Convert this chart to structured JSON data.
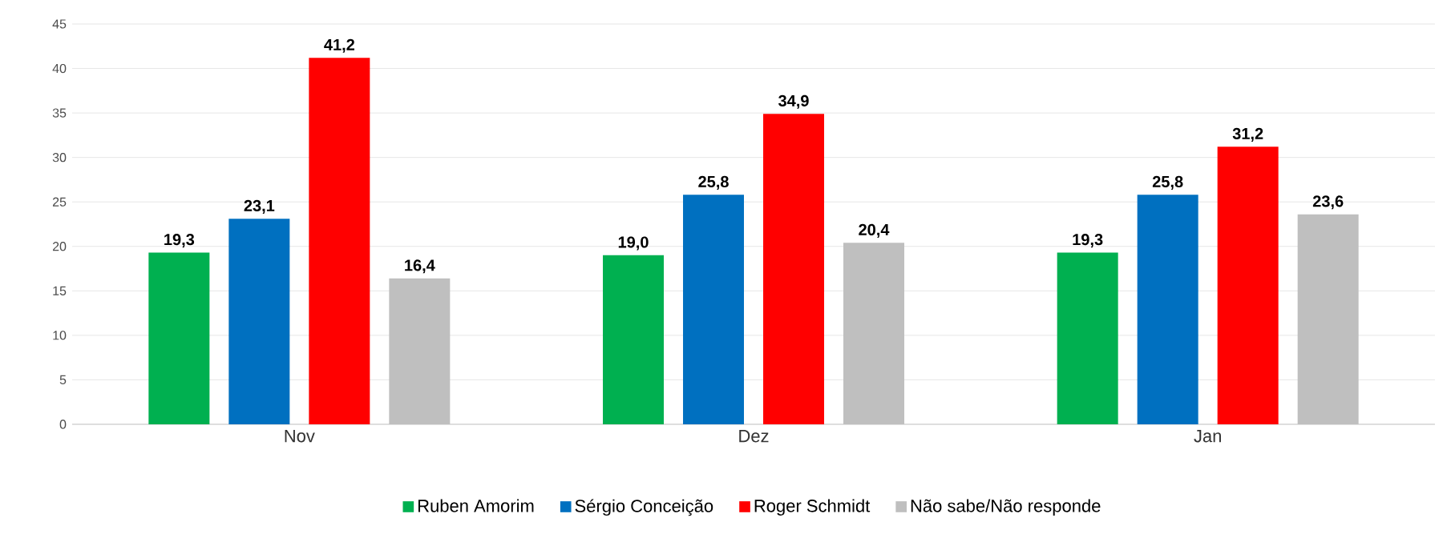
{
  "chart_data": {
    "type": "bar",
    "categories": [
      "Nov",
      "Dez",
      "Jan"
    ],
    "series": [
      {
        "name": "Ruben Amorim",
        "color": "#00b050",
        "values": [
          19.3,
          19.0,
          19.3
        ],
        "value_labels": [
          "19,3",
          "19,0",
          "19,3"
        ]
      },
      {
        "name": "Sérgio Conceição",
        "color": "#0070c0",
        "values": [
          23.1,
          25.8,
          25.8
        ],
        "value_labels": [
          "23,1",
          "25,8",
          "25,8"
        ]
      },
      {
        "name": "Roger Schmidt",
        "color": "#ff0000",
        "values": [
          41.2,
          34.9,
          31.2
        ],
        "value_labels": [
          "41,2",
          "34,9",
          "31,2"
        ]
      },
      {
        "name": "Não sabe/Não responde",
        "color": "#bfbfbf",
        "values": [
          16.4,
          20.4,
          23.6
        ],
        "value_labels": [
          "16,4",
          "20,4",
          "23,6"
        ]
      }
    ],
    "ylim": [
      0,
      45
    ],
    "yticks": [
      0,
      5,
      10,
      15,
      20,
      25,
      30,
      35,
      40,
      45
    ],
    "grid": "y",
    "legend": "bottom"
  }
}
